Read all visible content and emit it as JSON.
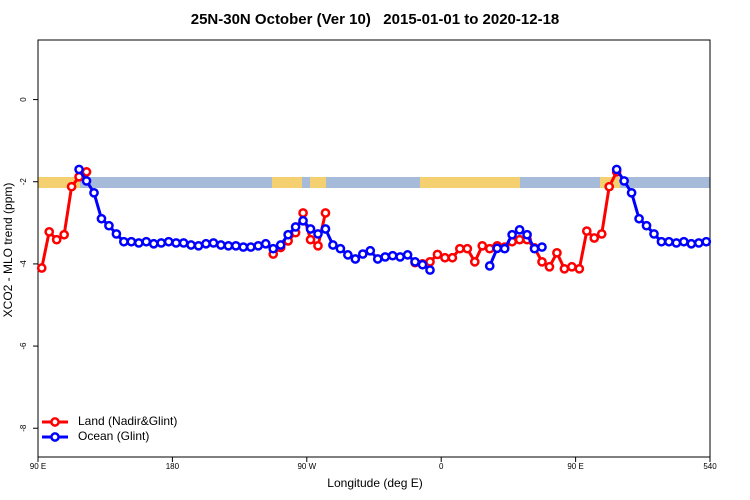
{
  "chart_data": {
    "type": "line",
    "title": "25N-30N October (Ver 10)   2015-01-01 to 2020-12-18",
    "x_label": "Longitude (deg E)",
    "y_label": "XCO2 - MLO trend (ppm)",
    "x": [
      92.5,
      97.5,
      102.5,
      107.5,
      112.5,
      117.5,
      122.5,
      127.5,
      132.5,
      137.5,
      142.5,
      147.5,
      152.5,
      157.5,
      162.5,
      167.5,
      172.5,
      177.5,
      182.5,
      187.5,
      192.5,
      197.5,
      202.5,
      207.5,
      212.5,
      217.5,
      222.5,
      227.5,
      232.5,
      237.5,
      242.5,
      247.5,
      252.5,
      257.5,
      262.5,
      267.5,
      272.5,
      277.5,
      282.5,
      287.5,
      292.5,
      297.5,
      302.5,
      307.5,
      312.5,
      317.5,
      322.5,
      327.5,
      332.5,
      337.5,
      342.5,
      347.5,
      352.5,
      357.5,
      362.5,
      367.5,
      372.5,
      377.5,
      382.5,
      387.5,
      392.5,
      397.5,
      402.5,
      407.5,
      412.5,
      417.5,
      422.5,
      427.5,
      432.5,
      437.5,
      442.5,
      447.5,
      452.5,
      457.5,
      462.5,
      467.5,
      472.5,
      477.5,
      482.5,
      487.5,
      492.5,
      497.5,
      502.5,
      507.5,
      512.5,
      517.5,
      522.5,
      527.5,
      532.5,
      537.5
    ],
    "series": [
      {
        "name": "Land (Nadir&Glint)",
        "color": "#ff0000",
        "values": [
          -4.1,
          -3.22,
          -3.41,
          -3.29,
          -2.12,
          -1.88,
          -1.76,
          null,
          null,
          null,
          null,
          null,
          null,
          null,
          null,
          null,
          null,
          null,
          null,
          null,
          null,
          null,
          null,
          null,
          null,
          null,
          null,
          null,
          null,
          null,
          null,
          -3.76,
          -3.6,
          -3.44,
          -3.24,
          -2.76,
          -3.41,
          -3.56,
          -2.76,
          null,
          null,
          null,
          null,
          null,
          null,
          null,
          null,
          null,
          null,
          null,
          -3.97,
          -4.0,
          -3.95,
          -3.77,
          -3.85,
          -3.85,
          -3.63,
          -3.63,
          -3.95,
          -3.56,
          -3.63,
          -3.56,
          -3.59,
          -3.46,
          -3.41,
          -3.41,
          -3.61,
          -3.95,
          -4.07,
          -3.73,
          -4.12,
          -4.07,
          -4.12,
          -3.2,
          -3.37,
          -3.27,
          -2.12,
          -1.76,
          null,
          null,
          null,
          null,
          null,
          null,
          null,
          null,
          null,
          null,
          null,
          null
        ]
      },
      {
        "name": "Ocean (Glint)",
        "color": "#0000ff",
        "values": [
          null,
          null,
          null,
          null,
          null,
          -1.7,
          -1.98,
          -2.27,
          -2.9,
          -3.07,
          -3.27,
          -3.46,
          -3.46,
          -3.49,
          -3.46,
          -3.51,
          -3.49,
          -3.46,
          -3.49,
          -3.49,
          -3.54,
          -3.56,
          -3.51,
          -3.49,
          -3.54,
          -3.56,
          -3.56,
          -3.59,
          -3.59,
          -3.56,
          -3.51,
          -3.63,
          -3.54,
          -3.29,
          -3.1,
          -2.95,
          -3.15,
          -3.27,
          -3.15,
          -3.54,
          -3.63,
          -3.78,
          -3.88,
          -3.76,
          -3.68,
          -3.88,
          -3.83,
          -3.8,
          -3.83,
          -3.78,
          -3.95,
          -4.02,
          -4.15,
          null,
          null,
          null,
          null,
          null,
          null,
          null,
          -4.05,
          -3.62,
          -3.63,
          -3.29,
          -3.17,
          -3.29,
          -3.63,
          -3.59,
          null,
          null,
          null,
          null,
          null,
          null,
          null,
          null,
          null,
          -1.7,
          -1.98,
          -2.27,
          -2.9,
          -3.07,
          -3.27,
          -3.46,
          -3.46,
          -3.49,
          -3.46,
          -3.51,
          -3.49,
          -3.46
        ]
      }
    ],
    "xlim": [
      90,
      540
    ],
    "xticks": [
      {
        "value": 90,
        "label": "90 E"
      },
      180,
      {
        "value": 270,
        "label": "90 W"
      },
      {
        "value": 360,
        "label": "0"
      },
      {
        "value": 450,
        "label": "90 E"
      },
      540
    ],
    "ylim": [
      -8.7,
      1.45
    ],
    "yticks": [
      0,
      -2,
      -4,
      -6,
      -8
    ],
    "legend": "bottom-left"
  }
}
